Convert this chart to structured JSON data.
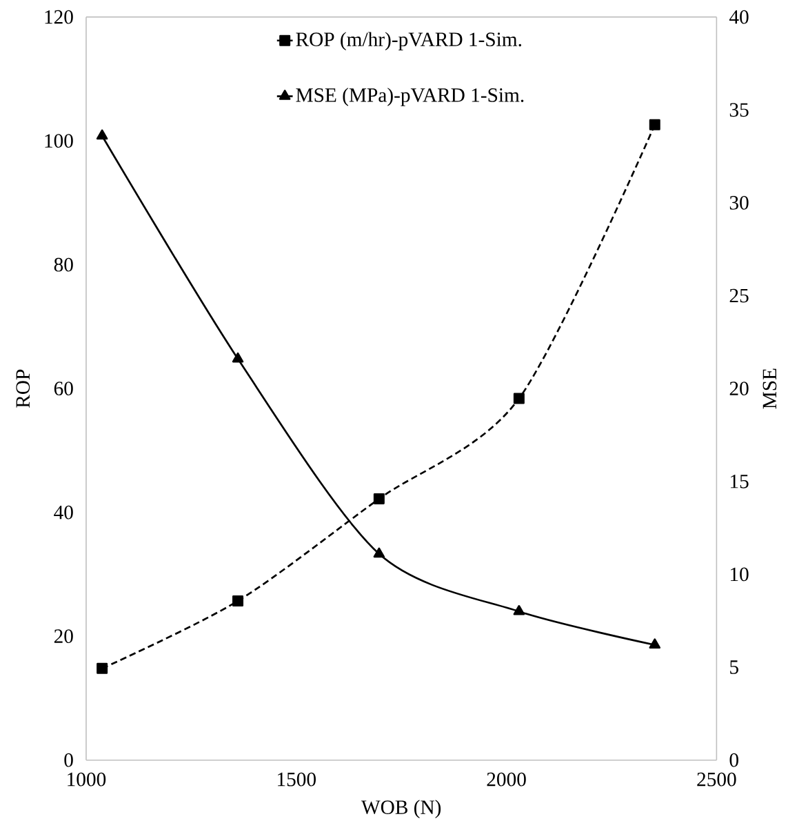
{
  "chart_data": {
    "type": "line",
    "xlabel": "WOB (N)",
    "ylabel": "ROP",
    "y2label": "MSE",
    "x": [
      1038,
      1361,
      1697,
      2030,
      2353
    ],
    "xlim": [
      1000,
      2500
    ],
    "xticks": [
      1000,
      1500,
      2000,
      2500
    ],
    "ylim": [
      0,
      120
    ],
    "yticks": [
      0,
      20,
      40,
      60,
      80,
      100,
      120
    ],
    "y2lim": [
      0,
      40
    ],
    "y2ticks": [
      0,
      5,
      10,
      15,
      20,
      25,
      30,
      35,
      40
    ],
    "legend": "top",
    "series": [
      {
        "name": "ROP (m/hr)-pVARD 1-Sim.",
        "color": "#000000",
        "marker": "square",
        "line_style": "dashed",
        "values": [
          14.8,
          25.7,
          42.2,
          58.4,
          102.6
        ]
      },
      {
        "name": "MSE (MPa)-pVARD 1-Sim.",
        "color": "#000000",
        "marker": "triangle",
        "line_style": "solid",
        "axis": "y2",
        "values": [
          33.6,
          21.6,
          11.1,
          8.0,
          6.2
        ]
      }
    ]
  }
}
